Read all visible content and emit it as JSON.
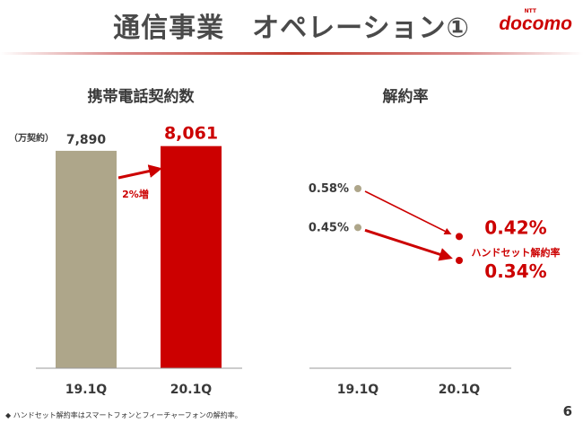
{
  "header": {
    "title": "通信事業　オペレーション①",
    "logo_sup": "NTT",
    "logo": "docomo"
  },
  "colors": {
    "accent": "#cc0000",
    "bar_prior": "#aea68a",
    "bar_current": "#cc0000",
    "point_prior": "#aea68a",
    "text": "#3a3a3a"
  },
  "chart_data": [
    {
      "type": "bar",
      "title": "携帯電話契約数",
      "unit": "（万契約）",
      "categories": [
        "19.1Q",
        "20.1Q"
      ],
      "values": [
        7890,
        8061
      ],
      "value_labels": [
        "7,890",
        "8,061"
      ],
      "ylim": [
        0,
        8800
      ],
      "annotation": "2%増"
    },
    {
      "type": "scatter",
      "title": "解約率",
      "categories": [
        "19.1Q",
        "20.1Q"
      ],
      "series": [
        {
          "values": [
            0.58,
            0.42
          ],
          "labels": [
            "0.58%",
            "0.42%"
          ]
        },
        {
          "name": "ハンドセット解約率",
          "values": [
            0.45,
            0.34
          ],
          "labels": [
            "0.45%",
            "0.34%"
          ]
        }
      ]
    }
  ],
  "footer": {
    "footnote": "◆ ハンドセット解約率はスマートフォンとフィーチャーフォンの解約率。",
    "page_number": "6"
  }
}
